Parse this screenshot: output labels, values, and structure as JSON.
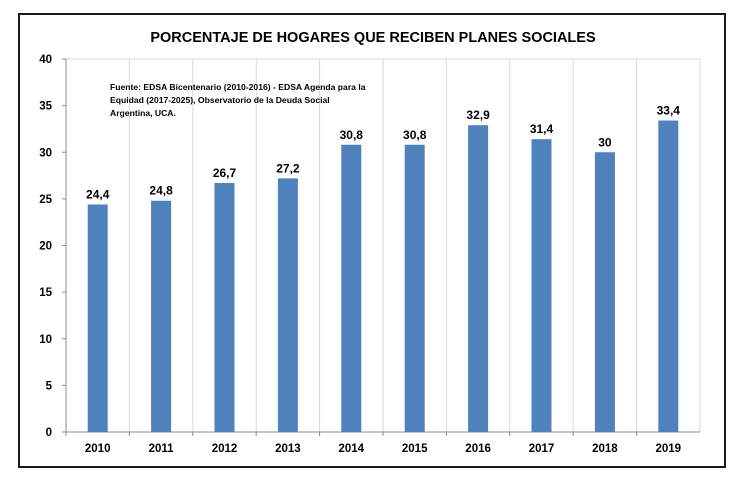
{
  "chart_data": {
    "type": "bar",
    "title": "PORCENTAJE  DE HOGARES QUE RECIBEN PLANES SOCIALES",
    "categories": [
      "2010",
      "2011",
      "2012",
      "2013",
      "2014",
      "2015",
      "2016",
      "2017",
      "2018",
      "2019"
    ],
    "values": [
      24.4,
      24.8,
      26.7,
      27.2,
      30.8,
      30.8,
      32.9,
      31.4,
      30,
      33.4
    ],
    "data_labels": [
      "24,4",
      "24,8",
      "26,7",
      "27,2",
      "30,8",
      "30,8",
      "32,9",
      "31,4",
      "30",
      "33,4"
    ],
    "ylim": [
      0,
      40
    ],
    "yticks": [
      0,
      5,
      10,
      15,
      20,
      25,
      30,
      35,
      40
    ],
    "xlabel": "",
    "ylabel": "",
    "grid": "vertical",
    "legend": "none",
    "bar_color": "#4f81bd",
    "annotation": [
      "Fuente: EDSA Bicentenario (2010-2016)  - EDSA Agenda para la",
      "Equidad (2017-2025),  Observatorio de la Deuda Social",
      "Argentina, UCA."
    ]
  }
}
